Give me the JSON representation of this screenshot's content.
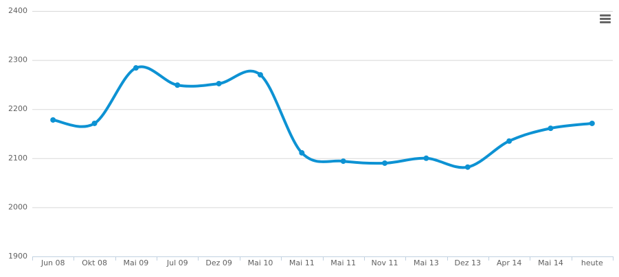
{
  "chart_data": {
    "type": "line",
    "categories": [
      "Jun 08",
      "Okt 08",
      "Mai 09",
      "Jul 09",
      "Dez 09",
      "Mai 10",
      "Mai 11",
      "Mai 11",
      "Nov 11",
      "Mai 13",
      "Dez 13",
      "Apr 14",
      "Mai 14",
      "heute"
    ],
    "series": [
      {
        "color": "#0d92d3",
        "values": [
          2178,
          2171,
          2284,
          2249,
          2252,
          2270,
          2111,
          2094,
          2090,
          2100,
          2082,
          2135,
          2161,
          2171
        ]
      }
    ],
    "ylim": [
      1900,
      2400
    ],
    "yticks": [
      1900,
      2000,
      2100,
      2200,
      2300,
      2400
    ],
    "grid": true
  }
}
